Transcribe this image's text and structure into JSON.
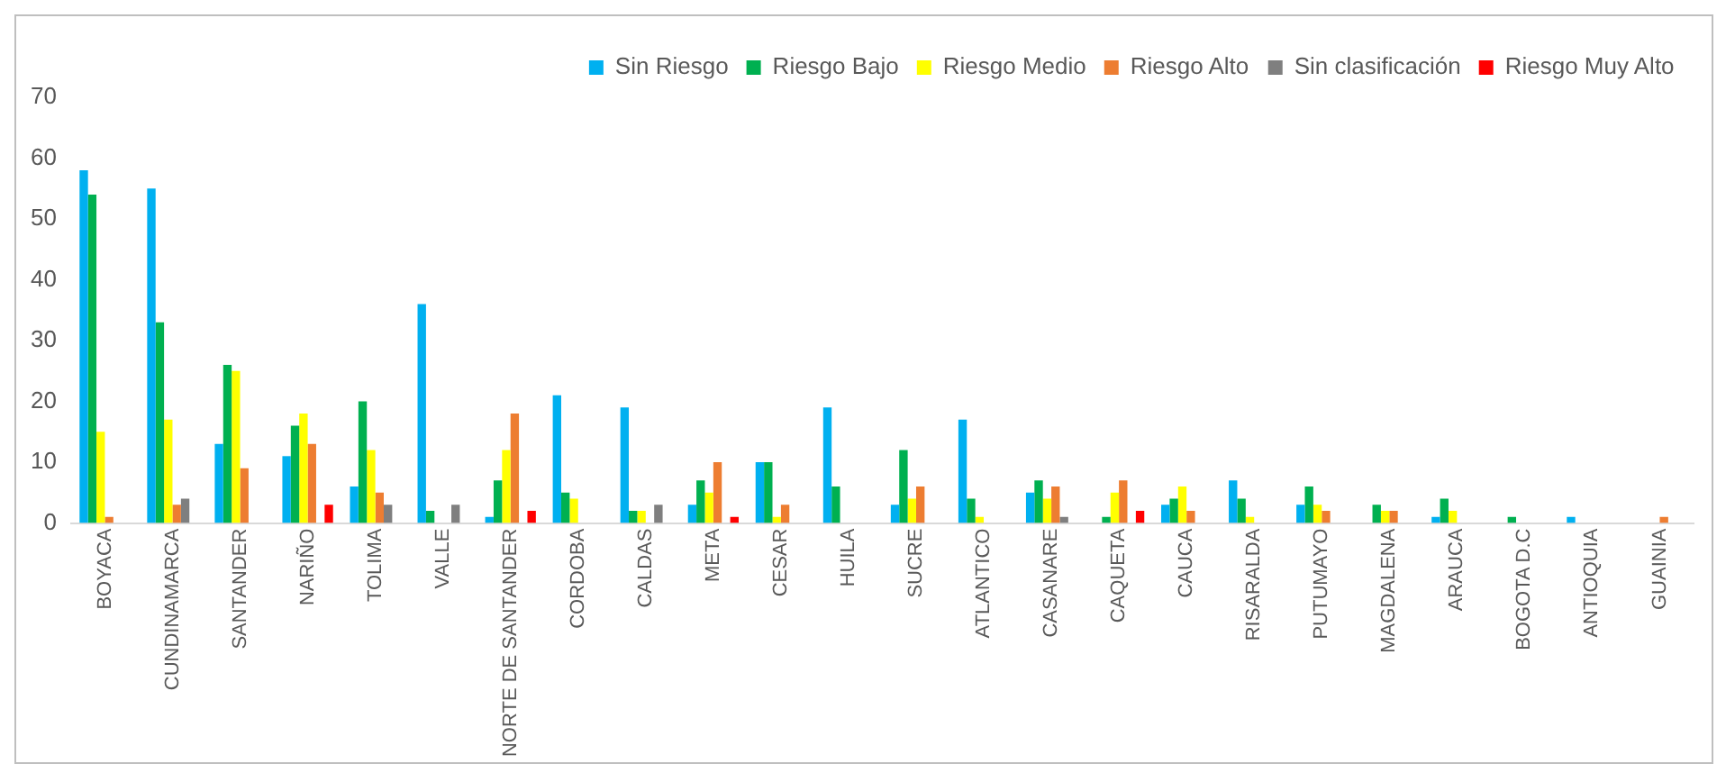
{
  "chart_data": {
    "type": "bar",
    "categories": [
      "BOYACA",
      "CUNDINAMARCA",
      "SANTANDER",
      "NARIÑO",
      "TOLIMA",
      "VALLE",
      "NORTE DE SANTANDER",
      "CORDOBA",
      "CALDAS",
      "META",
      "CESAR",
      "HUILA",
      "SUCRE",
      "ATLANTICO",
      "CASANARE",
      "CAQUETA",
      "CAUCA",
      "RISARALDA",
      "PUTUMAYO",
      "MAGDALENA",
      "ARAUCA",
      "BOGOTA D.C",
      "ANTIOQUIA",
      "GUAINIA"
    ],
    "series": [
      {
        "name": "Sin Riesgo",
        "color": "#00b0f0",
        "values": [
          58,
          55,
          13,
          11,
          6,
          36,
          1,
          21,
          19,
          3,
          10,
          19,
          3,
          17,
          5,
          0,
          3,
          7,
          3,
          0,
          1,
          0,
          1,
          0
        ]
      },
      {
        "name": "Riesgo Bajo",
        "color": "#00b050",
        "values": [
          54,
          33,
          26,
          16,
          20,
          2,
          7,
          5,
          2,
          7,
          10,
          6,
          12,
          4,
          7,
          1,
          4,
          4,
          6,
          3,
          4,
          1,
          0,
          0
        ]
      },
      {
        "name": "Riesgo Medio",
        "color": "#ffff00",
        "values": [
          15,
          17,
          25,
          18,
          12,
          0,
          12,
          4,
          2,
          5,
          1,
          0,
          4,
          1,
          4,
          5,
          6,
          1,
          3,
          2,
          2,
          0,
          0,
          0
        ]
      },
      {
        "name": "Riesgo Alto",
        "color": "#ed7d31",
        "values": [
          1,
          3,
          9,
          13,
          5,
          0,
          18,
          0,
          0,
          10,
          3,
          0,
          6,
          0,
          6,
          7,
          2,
          0,
          2,
          2,
          0,
          0,
          0,
          1
        ]
      },
      {
        "name": "Sin clasificación",
        "color": "#7f7f7f",
        "values": [
          0,
          4,
          0,
          0,
          3,
          3,
          0,
          0,
          3,
          0,
          0,
          0,
          0,
          0,
          1,
          0,
          0,
          0,
          0,
          0,
          0,
          0,
          0,
          0
        ]
      },
      {
        "name": "Riesgo Muy Alto",
        "color": "#ff0000",
        "values": [
          0,
          0,
          0,
          3,
          0,
          0,
          2,
          0,
          0,
          1,
          0,
          0,
          0,
          0,
          0,
          2,
          0,
          0,
          0,
          0,
          0,
          0,
          0,
          0
        ]
      }
    ],
    "ylim": [
      0,
      70
    ],
    "yticks": [
      0,
      10,
      20,
      30,
      40,
      50,
      60,
      70
    ],
    "grid": false,
    "legend": "top right"
  }
}
